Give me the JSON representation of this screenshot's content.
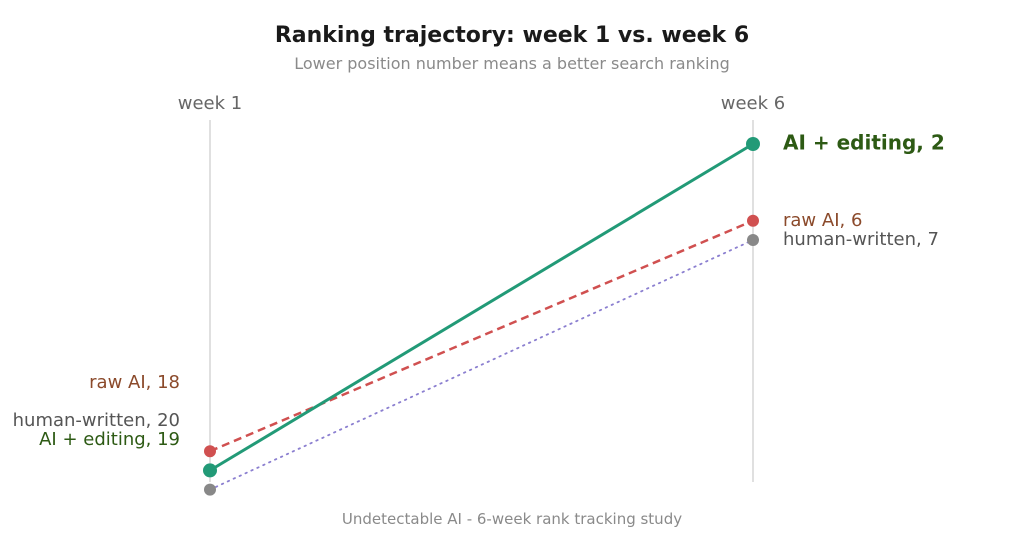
{
  "chart_data": {
    "type": "line",
    "title": "Ranking trajectory: week 1 vs. week 6",
    "subtitle": "Lower position number means a better search ranking",
    "caption": "Undetectable AI - 6-week rank tracking study",
    "categories": [
      "week 1",
      "week 6"
    ],
    "ylim": [
      21,
      1
    ],
    "y_inverted": true,
    "grid": false,
    "legend": "none",
    "series": [
      {
        "key": "human",
        "values": [
          20,
          7
        ],
        "color": "#888888",
        "line_color": "#8b7fd0",
        "style": "dotted",
        "labels": [
          "human-written, 20",
          "human-written, 7"
        ],
        "label_color": "#555555"
      },
      {
        "key": "raw",
        "values": [
          18,
          6
        ],
        "color": "#d05050",
        "style": "dashed",
        "labels": [
          "raw AI, 18",
          "raw AI, 6"
        ],
        "label_color": "#8b4a2b"
      },
      {
        "key": "edited",
        "values": [
          19,
          2
        ],
        "color": "#229a77",
        "style": "solid",
        "highlight": true,
        "labels": [
          "AI + editing, 19",
          "AI + editing, 2"
        ],
        "label_color": "#2d5a14"
      }
    ]
  }
}
